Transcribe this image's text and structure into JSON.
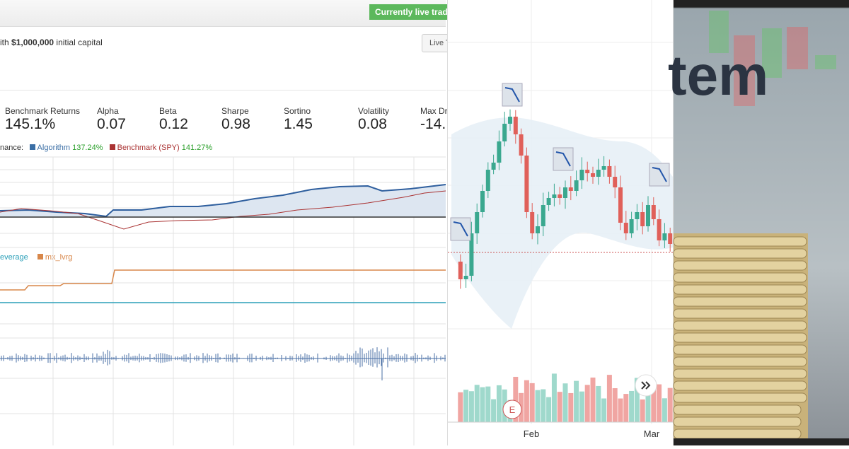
{
  "header": {
    "status": "Currently live tradi",
    "capital_prefix": "ith ",
    "capital": "$1,000,000",
    "capital_suffix": " initial capital",
    "button": "Live T"
  },
  "metrics": [
    {
      "label": "Benchmark Returns",
      "value": "145.1%"
    },
    {
      "label": "Alpha",
      "value": "0.07"
    },
    {
      "label": "Beta",
      "value": "0.12"
    },
    {
      "label": "Sharpe",
      "value": "0.98"
    },
    {
      "label": "Sortino",
      "value": "1.45"
    },
    {
      "label": "Volatility",
      "value": "0.08"
    },
    {
      "label": "Max Dr",
      "value": "-14."
    }
  ],
  "performance": {
    "label": "nance:",
    "legend": [
      {
        "name": "Algorithm",
        "value": "137.24%"
      },
      {
        "name": "Benchmark (SPY)",
        "value": "141.27%"
      }
    ]
  },
  "leverage": {
    "legend": [
      "everage",
      "mx_lvrg"
    ]
  },
  "candles": {
    "x_labels": [
      "Feb",
      "Mar"
    ],
    "earnings_marker": "E"
  },
  "banner": {
    "text": "tem"
  }
}
